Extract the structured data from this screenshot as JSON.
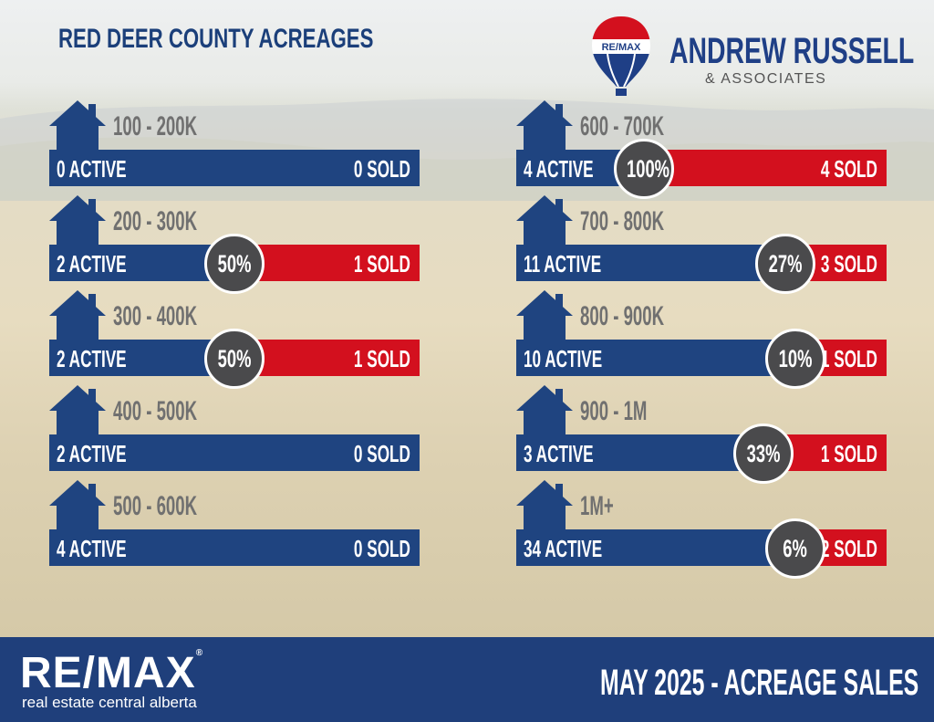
{
  "header": {
    "title": "RED DEER COUNTY ACREAGES",
    "brand_name": "ANDREW RUSSELL",
    "brand_sub": "& ASSOCIATES",
    "balloon_text": "RE/MAX"
  },
  "colors": {
    "navy": "#1f4480",
    "red": "#d3101e",
    "badge": "#4a4a4c",
    "footer": "#1f3f7b"
  },
  "ranges": [
    {
      "range": "100 - 200K",
      "active_label": "0 ACTIVE",
      "sold_label": "0 SOLD",
      "percent": "",
      "active": 0,
      "sold": 0
    },
    {
      "range": "200 - 300K",
      "active_label": "2 ACTIVE",
      "sold_label": "1 SOLD",
      "percent": "50%",
      "active": 2,
      "sold": 1
    },
    {
      "range": "300 - 400K",
      "active_label": "2 ACTIVE",
      "sold_label": "1 SOLD",
      "percent": "50%",
      "active": 2,
      "sold": 1
    },
    {
      "range": "400 - 500K",
      "active_label": "2 ACTIVE",
      "sold_label": "0 SOLD",
      "percent": "",
      "active": 2,
      "sold": 0
    },
    {
      "range": "500 - 600K",
      "active_label": "4 ACTIVE",
      "sold_label": "0 SOLD",
      "percent": "",
      "active": 4,
      "sold": 0
    },
    {
      "range": "600 - 700K",
      "active_label": "4 ACTIVE",
      "sold_label": "4 SOLD",
      "percent": "100%",
      "active": 4,
      "sold": 4
    },
    {
      "range": "700 - 800K",
      "active_label": "11 ACTIVE",
      "sold_label": "3 SOLD",
      "percent": "27%",
      "active": 11,
      "sold": 3
    },
    {
      "range": "800 - 900K",
      "active_label": "10 ACTIVE",
      "sold_label": "1 SOLD",
      "percent": "10%",
      "active": 10,
      "sold": 1
    },
    {
      "range": "900 - 1M",
      "active_label": "3 ACTIVE",
      "sold_label": "1 SOLD",
      "percent": "33%",
      "active": 3,
      "sold": 1
    },
    {
      "range": "1M+",
      "active_label": "34 ACTIVE",
      "sold_label": "2 SOLD",
      "percent": "6%",
      "active": 34,
      "sold": 2
    }
  ],
  "footer": {
    "logo": "RE/MAX",
    "subtitle": "real estate central alberta",
    "right_text": "MAY 2025 - ACREAGE SALES"
  }
}
